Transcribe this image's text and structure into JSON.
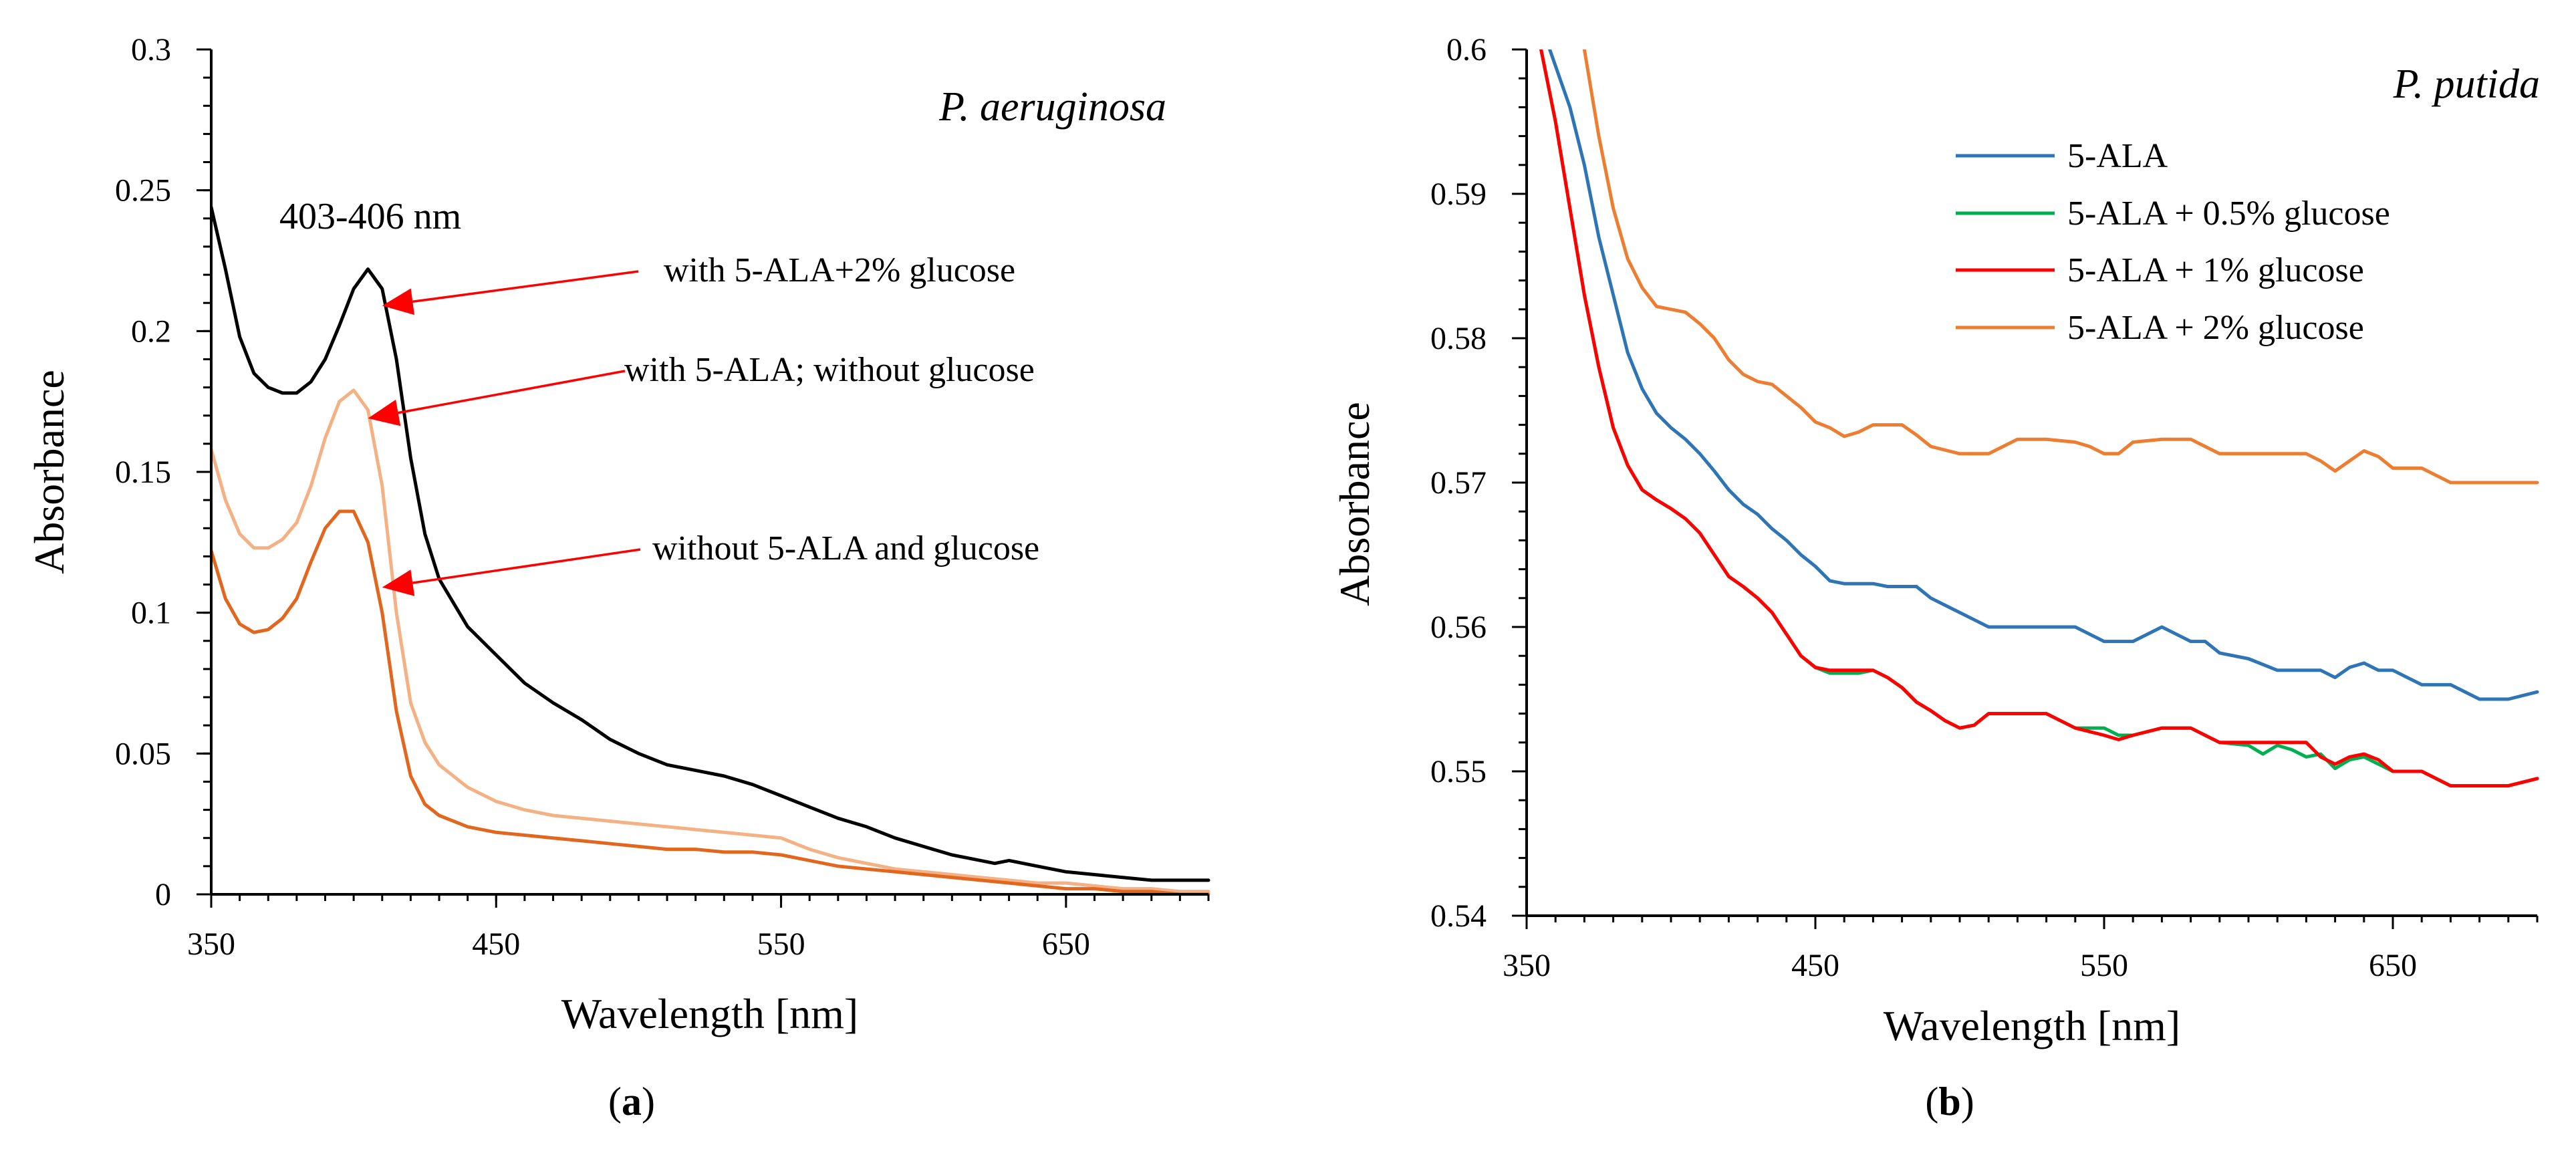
{
  "chart_data": [
    {
      "type": "line",
      "panel_label": "a",
      "title": "P. aeruginosa",
      "xlabel": "Wavelength [nm]",
      "ylabel": "Absorbance",
      "xlim": [
        350,
        700
      ],
      "ylim": [
        0,
        0.3
      ],
      "x_ticks": [
        350,
        450,
        550,
        650
      ],
      "x_minor_step": 10,
      "y_ticks": [
        0,
        0.05,
        0.1,
        0.15,
        0.2,
        0.25,
        0.3
      ],
      "y_tick_labels": [
        "0",
        "0.05",
        "0.1",
        "0.15",
        "0.2",
        "0.25",
        "0.3"
      ],
      "y_minor_step": 0.01,
      "grid": false,
      "legend": "none",
      "peak_label": "403-406 nm",
      "series": [
        {
          "color": "#000000",
          "x": [
            350,
            355,
            360,
            365,
            370,
            375,
            380,
            385,
            390,
            395,
            400,
            405,
            410,
            415,
            420,
            425,
            430,
            440,
            450,
            460,
            470,
            480,
            490,
            500,
            510,
            520,
            530,
            540,
            550,
            560,
            570,
            580,
            590,
            600,
            610,
            620,
            625,
            630,
            640,
            650,
            660,
            670,
            680,
            690,
            700
          ],
          "y": [
            0.244,
            0.222,
            0.198,
            0.185,
            0.18,
            0.178,
            0.178,
            0.182,
            0.19,
            0.202,
            0.215,
            0.222,
            0.215,
            0.19,
            0.155,
            0.128,
            0.112,
            0.095,
            0.085,
            0.075,
            0.068,
            0.062,
            0.055,
            0.05,
            0.046,
            0.044,
            0.042,
            0.039,
            0.035,
            0.031,
            0.027,
            0.024,
            0.02,
            0.017,
            0.014,
            0.012,
            0.011,
            0.012,
            0.01,
            0.008,
            0.007,
            0.006,
            0.005,
            0.005,
            0.005
          ]
        },
        {
          "color": "#f4b183",
          "x": [
            350,
            355,
            360,
            365,
            370,
            375,
            380,
            385,
            390,
            395,
            400,
            405,
            410,
            415,
            420,
            425,
            430,
            440,
            450,
            460,
            470,
            480,
            490,
            500,
            510,
            520,
            530,
            540,
            550,
            560,
            570,
            580,
            590,
            600,
            610,
            620,
            630,
            640,
            650,
            660,
            670,
            680,
            690,
            700
          ],
          "y": [
            0.158,
            0.14,
            0.128,
            0.123,
            0.123,
            0.126,
            0.132,
            0.145,
            0.162,
            0.175,
            0.179,
            0.172,
            0.145,
            0.1,
            0.068,
            0.054,
            0.046,
            0.038,
            0.033,
            0.03,
            0.028,
            0.027,
            0.026,
            0.025,
            0.024,
            0.023,
            0.022,
            0.021,
            0.02,
            0.016,
            0.013,
            0.011,
            0.009,
            0.008,
            0.007,
            0.006,
            0.005,
            0.004,
            0.004,
            0.003,
            0.002,
            0.002,
            0.001,
            0.001
          ]
        },
        {
          "color": "#e2661d",
          "x": [
            350,
            355,
            360,
            365,
            370,
            375,
            380,
            385,
            390,
            395,
            400,
            405,
            410,
            415,
            420,
            425,
            430,
            440,
            450,
            460,
            470,
            480,
            490,
            500,
            510,
            520,
            530,
            540,
            550,
            560,
            570,
            580,
            590,
            600,
            610,
            620,
            630,
            640,
            650,
            660,
            670,
            680,
            690,
            700
          ],
          "y": [
            0.122,
            0.105,
            0.096,
            0.093,
            0.094,
            0.098,
            0.105,
            0.118,
            0.13,
            0.136,
            0.136,
            0.125,
            0.1,
            0.065,
            0.042,
            0.032,
            0.028,
            0.024,
            0.022,
            0.021,
            0.02,
            0.019,
            0.018,
            0.017,
            0.016,
            0.016,
            0.015,
            0.015,
            0.014,
            0.012,
            0.01,
            0.009,
            0.008,
            0.007,
            0.006,
            0.005,
            0.004,
            0.003,
            0.002,
            0.002,
            0.001,
            0.001,
            0,
            0
          ]
        }
      ],
      "annotations": [
        {
          "text": "with 5-ALA+2% glucose",
          "target": [
            410,
            0.209
          ],
          "series_index": 0
        },
        {
          "text": "with 5-ALA; without glucose",
          "target": [
            405,
            0.169
          ],
          "series_index": 1
        },
        {
          "text": "without 5-ALA and glucose",
          "target": [
            410,
            0.109
          ],
          "series_index": 2
        }
      ],
      "annotation_color": "#ff0000"
    },
    {
      "type": "line",
      "panel_label": "b",
      "title": "P. putida",
      "xlabel": "Wavelength [nm]",
      "ylabel": "Absorbance",
      "xlim": [
        350,
        700
      ],
      "ylim": [
        0.54,
        0.6
      ],
      "x_ticks": [
        350,
        450,
        550,
        650
      ],
      "x_minor_step": 10,
      "y_ticks": [
        0.54,
        0.55,
        0.56,
        0.57,
        0.58,
        0.59,
        0.6
      ],
      "y_tick_labels": [
        "0.54",
        "0.55",
        "0.56",
        "0.57",
        "0.58",
        "0.59",
        "0.6"
      ],
      "y_minor_step": 0.002,
      "grid": false,
      "legend": "top-right",
      "series": [
        {
          "name": "5-ALA",
          "color": "#2e75b6",
          "x": [
            358,
            365,
            370,
            375,
            380,
            385,
            390,
            395,
            400,
            405,
            410,
            415,
            420,
            425,
            430,
            435,
            440,
            445,
            450,
            455,
            460,
            465,
            470,
            475,
            480,
            485,
            490,
            495,
            500,
            505,
            510,
            520,
            530,
            540,
            550,
            560,
            570,
            575,
            580,
            585,
            590,
            600,
            610,
            620,
            625,
            630,
            635,
            640,
            645,
            650,
            660,
            670,
            680,
            690,
            700
          ],
          "y": [
            0.6,
            0.596,
            0.592,
            0.587,
            0.583,
            0.579,
            0.5765,
            0.5748,
            0.5738,
            0.573,
            0.572,
            0.5708,
            0.5695,
            0.5685,
            0.5678,
            0.5668,
            0.566,
            0.565,
            0.5642,
            0.5632,
            0.563,
            0.563,
            0.563,
            0.5628,
            0.5628,
            0.5628,
            0.562,
            0.5615,
            0.561,
            0.5605,
            0.56,
            0.56,
            0.56,
            0.56,
            0.559,
            0.559,
            0.56,
            0.5595,
            0.559,
            0.559,
            0.5582,
            0.5578,
            0.557,
            0.557,
            0.557,
            0.5565,
            0.5572,
            0.5575,
            0.557,
            0.557,
            0.556,
            0.556,
            0.555,
            0.555,
            0.5555
          ]
        },
        {
          "name": "5-ALA + 0.5% glucose",
          "color": "#00b050",
          "x": [
            355,
            360,
            365,
            370,
            375,
            380,
            385,
            390,
            395,
            400,
            405,
            410,
            415,
            420,
            425,
            430,
            435,
            440,
            445,
            450,
            455,
            460,
            465,
            470,
            475,
            480,
            485,
            490,
            495,
            500,
            505,
            510,
            520,
            530,
            540,
            550,
            555,
            560,
            570,
            580,
            590,
            600,
            605,
            610,
            615,
            620,
            625,
            630,
            635,
            640,
            645,
            650,
            660,
            670,
            680,
            690,
            700
          ],
          "y": [
            0.6,
            0.595,
            0.589,
            0.583,
            0.578,
            0.5738,
            0.5712,
            0.5695,
            0.5688,
            0.5682,
            0.5675,
            0.5665,
            0.565,
            0.5635,
            0.5628,
            0.562,
            0.561,
            0.5595,
            0.558,
            0.5572,
            0.5568,
            0.5568,
            0.5568,
            0.557,
            0.5565,
            0.5558,
            0.5548,
            0.5542,
            0.5535,
            0.553,
            0.5532,
            0.554,
            0.554,
            0.554,
            0.553,
            0.553,
            0.5525,
            0.5525,
            0.553,
            0.553,
            0.552,
            0.5518,
            0.5512,
            0.5518,
            0.5515,
            0.551,
            0.5512,
            0.5502,
            0.5508,
            0.551,
            0.5505,
            0.55,
            0.55,
            0.549,
            0.549,
            0.549,
            0.5495
          ]
        },
        {
          "name": "5-ALA + 1% glucose",
          "color": "#ff0000",
          "x": [
            355,
            360,
            365,
            370,
            375,
            380,
            385,
            390,
            395,
            400,
            405,
            410,
            415,
            420,
            425,
            430,
            435,
            440,
            445,
            450,
            455,
            460,
            465,
            470,
            475,
            480,
            485,
            490,
            495,
            500,
            505,
            510,
            520,
            530,
            540,
            550,
            555,
            560,
            570,
            580,
            590,
            600,
            610,
            620,
            625,
            630,
            635,
            640,
            645,
            650,
            660,
            670,
            680,
            690,
            700
          ],
          "y": [
            0.6,
            0.595,
            0.589,
            0.583,
            0.578,
            0.5738,
            0.5712,
            0.5695,
            0.5688,
            0.5682,
            0.5675,
            0.5665,
            0.565,
            0.5635,
            0.5628,
            0.562,
            0.561,
            0.5595,
            0.558,
            0.5572,
            0.557,
            0.557,
            0.557,
            0.557,
            0.5565,
            0.5558,
            0.5548,
            0.5542,
            0.5535,
            0.553,
            0.5532,
            0.554,
            0.554,
            0.554,
            0.553,
            0.5525,
            0.5522,
            0.5525,
            0.553,
            0.553,
            0.552,
            0.552,
            0.552,
            0.552,
            0.551,
            0.5505,
            0.551,
            0.5512,
            0.5508,
            0.55,
            0.55,
            0.549,
            0.549,
            0.549,
            0.5495
          ]
        },
        {
          "name": "5-ALA + 2% glucose",
          "color": "#ed7d31",
          "x": [
            370,
            375,
            380,
            385,
            390,
            395,
            400,
            405,
            410,
            415,
            420,
            425,
            430,
            435,
            440,
            445,
            450,
            455,
            460,
            465,
            470,
            475,
            480,
            485,
            490,
            500,
            510,
            515,
            520,
            530,
            540,
            545,
            550,
            555,
            560,
            570,
            580,
            590,
            600,
            610,
            620,
            625,
            630,
            635,
            640,
            645,
            650,
            660,
            670,
            680,
            690,
            700
          ],
          "y": [
            0.6,
            0.594,
            0.589,
            0.5855,
            0.5835,
            0.5822,
            0.582,
            0.5818,
            0.581,
            0.58,
            0.5785,
            0.5775,
            0.577,
            0.5768,
            0.576,
            0.5752,
            0.5742,
            0.5738,
            0.5732,
            0.5735,
            0.574,
            0.574,
            0.574,
            0.5733,
            0.5725,
            0.572,
            0.572,
            0.5725,
            0.573,
            0.573,
            0.5728,
            0.5725,
            0.572,
            0.572,
            0.5728,
            0.573,
            0.573,
            0.572,
            0.572,
            0.572,
            0.572,
            0.5715,
            0.5708,
            0.5715,
            0.5722,
            0.5718,
            0.571,
            0.571,
            0.57,
            0.57,
            0.57,
            0.57
          ]
        }
      ]
    }
  ]
}
